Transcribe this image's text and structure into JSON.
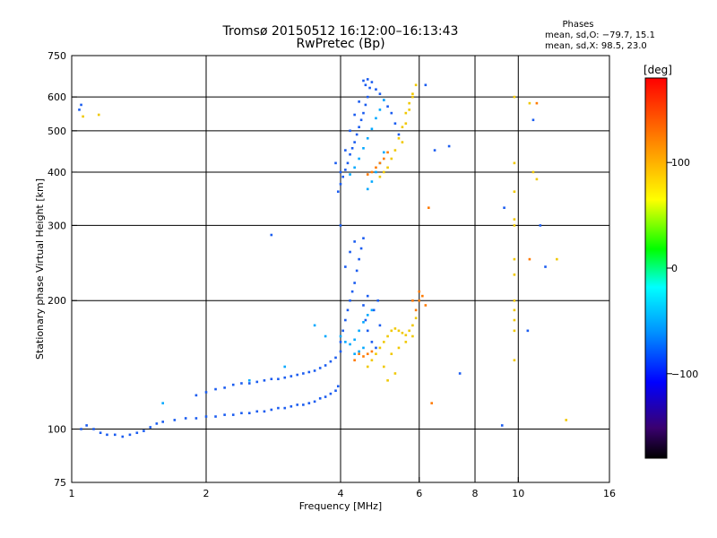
{
  "chart_data": {
    "type": "scatter",
    "title": "Tromsø 20150512 16:12:00–16:13:43",
    "subtitle": "RwPretec (Bp)",
    "xlabel": "Frequency [MHz]",
    "ylabel": "Stationary phase Virtual Height [km]",
    "x_scale": "log2",
    "y_scale": "log",
    "xlim": [
      1,
      16
    ],
    "ylim": [
      75,
      750
    ],
    "x_ticks": [
      {
        "value": 1,
        "label": "1"
      },
      {
        "value": 2,
        "label": "2"
      },
      {
        "value": 4,
        "label": "4"
      },
      {
        "value": 6,
        "label": "6"
      },
      {
        "value": 8,
        "label": "8"
      },
      {
        "value": 10,
        "label": "10"
      },
      {
        "value": 16,
        "label": "16"
      }
    ],
    "y_ticks": [
      {
        "value": 75,
        "label": "75"
      },
      {
        "value": 100,
        "label": "100"
      },
      {
        "value": 200,
        "label": "200"
      },
      {
        "value": 300,
        "label": "300"
      },
      {
        "value": 400,
        "label": "400"
      },
      {
        "value": 500,
        "label": "500"
      },
      {
        "value": 600,
        "label": "600"
      },
      {
        "value": 750,
        "label": "750"
      }
    ],
    "grid": true,
    "phases_header": "Phases",
    "phase_stats": [
      "mean, sd,O: −79.7, 15.1",
      "mean, sd,X: 98.5, 23.0"
    ],
    "colorbar": {
      "label": "[deg]",
      "range": [
        -180,
        180
      ],
      "ticks": [
        {
          "value": 100,
          "label": "100"
        },
        {
          "value": 0,
          "label": "0"
        },
        {
          "value": -100,
          "label": "−100"
        }
      ],
      "colors": [
        "#000000",
        "#3a0070",
        "#0000ff",
        "#0090ff",
        "#00ffff",
        "#00ff00",
        "#ffff00",
        "#ff8000",
        "#ff0000"
      ]
    },
    "series": [
      {
        "points": [
          [
            1.05,
            100
          ],
          [
            1.08,
            102
          ],
          [
            1.12,
            100
          ],
          [
            1.16,
            98
          ],
          [
            1.2,
            97
          ],
          [
            1.25,
            97
          ],
          [
            1.3,
            96
          ],
          [
            1.35,
            97
          ],
          [
            1.4,
            98
          ],
          [
            1.45,
            99
          ],
          [
            1.5,
            101
          ],
          [
            1.55,
            103
          ],
          [
            1.6,
            104
          ],
          [
            1.7,
            105
          ],
          [
            1.8,
            106
          ],
          [
            1.9,
            106
          ],
          [
            2.0,
            107
          ],
          [
            2.1,
            107
          ],
          [
            2.2,
            108
          ],
          [
            2.3,
            108
          ],
          [
            2.4,
            109
          ],
          [
            2.5,
            109
          ],
          [
            2.6,
            110
          ],
          [
            2.7,
            110
          ],
          [
            2.8,
            111
          ],
          [
            2.9,
            112
          ],
          [
            3.0,
            112
          ],
          [
            3.1,
            113
          ],
          [
            3.2,
            114
          ],
          [
            3.3,
            114
          ],
          [
            3.4,
            115
          ],
          [
            3.5,
            116
          ],
          [
            3.6,
            118
          ],
          [
            3.7,
            119
          ],
          [
            3.8,
            121
          ],
          [
            3.9,
            123
          ],
          [
            3.95,
            126
          ],
          [
            1.9,
            120
          ],
          [
            2.0,
            122
          ],
          [
            2.1,
            124
          ],
          [
            2.2,
            125
          ],
          [
            2.3,
            127
          ],
          [
            2.4,
            128
          ],
          [
            2.5,
            128
          ],
          [
            2.6,
            129
          ],
          [
            2.7,
            130
          ],
          [
            2.8,
            131
          ],
          [
            2.9,
            131
          ],
          [
            3.0,
            132
          ],
          [
            3.1,
            133
          ],
          [
            3.2,
            134
          ],
          [
            3.3,
            135
          ],
          [
            3.4,
            136
          ],
          [
            3.5,
            137
          ],
          [
            3.6,
            139
          ],
          [
            3.7,
            141
          ],
          [
            3.8,
            144
          ],
          [
            3.9,
            147
          ],
          [
            4.0,
            152
          ],
          [
            4.0,
            160
          ],
          [
            4.05,
            170
          ],
          [
            4.1,
            180
          ],
          [
            4.15,
            190
          ],
          [
            4.2,
            200
          ],
          [
            4.25,
            210
          ],
          [
            4.3,
            220
          ],
          [
            4.35,
            235
          ],
          [
            4.4,
            250
          ],
          [
            4.45,
            265
          ],
          [
            4.5,
            280
          ],
          [
            4.1,
            240
          ],
          [
            4.2,
            260
          ],
          [
            4.3,
            275
          ],
          [
            4.55,
            180
          ],
          [
            4.6,
            170
          ],
          [
            4.7,
            160
          ],
          [
            4.8,
            155
          ],
          [
            4.5,
            195
          ],
          [
            4.6,
            205
          ],
          [
            4.9,
            175
          ],
          [
            4.75,
            190
          ],
          [
            4.85,
            200
          ],
          [
            4.0,
            300
          ],
          [
            2.8,
            285
          ],
          [
            1.04,
            560
          ],
          [
            1.05,
            575
          ],
          [
            3.95,
            360
          ],
          [
            4.0,
            375
          ],
          [
            4.05,
            390
          ],
          [
            4.1,
            405
          ],
          [
            4.15,
            420
          ],
          [
            4.2,
            440
          ],
          [
            4.25,
            455
          ],
          [
            4.3,
            470
          ],
          [
            4.35,
            490
          ],
          [
            4.4,
            510
          ],
          [
            4.45,
            530
          ],
          [
            4.5,
            550
          ],
          [
            4.55,
            575
          ],
          [
            4.6,
            600
          ],
          [
            4.65,
            630
          ],
          [
            4.5,
            655
          ],
          [
            4.55,
            640
          ],
          [
            4.6,
            660
          ],
          [
            4.7,
            650
          ],
          [
            4.0,
            400
          ],
          [
            4.1,
            450
          ],
          [
            4.2,
            500
          ],
          [
            4.3,
            545
          ],
          [
            4.4,
            585
          ],
          [
            4.8,
            625
          ],
          [
            4.9,
            610
          ],
          [
            5.0,
            590
          ],
          [
            5.1,
            570
          ],
          [
            5.2,
            550
          ],
          [
            5.3,
            520
          ],
          [
            5.4,
            490
          ],
          [
            3.9,
            420
          ],
          [
            9.3,
            330
          ],
          [
            10.8,
            530
          ],
          [
            11.2,
            300
          ],
          [
            11.5,
            240
          ],
          [
            7.0,
            460
          ],
          [
            6.5,
            450
          ],
          [
            6.2,
            640
          ],
          [
            10.5,
            170
          ],
          [
            7.4,
            135
          ],
          [
            9.2,
            102
          ]
        ]
      },
      {
        "points": [
          [
            4.9,
            390
          ],
          [
            5.0,
            400
          ],
          [
            5.1,
            410
          ],
          [
            5.2,
            430
          ],
          [
            5.3,
            450
          ],
          [
            5.4,
            480
          ],
          [
            5.5,
            510
          ],
          [
            5.6,
            550
          ],
          [
            5.7,
            580
          ],
          [
            5.8,
            610
          ],
          [
            5.9,
            640
          ],
          [
            5.6,
            520
          ],
          [
            5.7,
            560
          ],
          [
            5.8,
            600
          ],
          [
            5.5,
            470
          ],
          [
            4.6,
            140
          ],
          [
            4.7,
            145
          ],
          [
            4.8,
            150
          ],
          [
            4.9,
            155
          ],
          [
            5.0,
            160
          ],
          [
            5.1,
            165
          ],
          [
            5.2,
            170
          ],
          [
            5.3,
            172
          ],
          [
            5.4,
            170
          ],
          [
            5.5,
            168
          ],
          [
            5.6,
            166
          ],
          [
            5.7,
            170
          ],
          [
            5.8,
            175
          ],
          [
            5.9,
            182
          ],
          [
            5.0,
            140
          ],
          [
            5.2,
            150
          ],
          [
            5.4,
            155
          ],
          [
            5.6,
            160
          ],
          [
            5.8,
            165
          ],
          [
            5.1,
            130
          ],
          [
            5.3,
            135
          ],
          [
            9.8,
            600
          ],
          [
            9.8,
            420
          ],
          [
            9.8,
            360
          ],
          [
            9.8,
            300
          ],
          [
            9.8,
            250
          ],
          [
            9.8,
            200
          ],
          [
            9.8,
            180
          ],
          [
            9.8,
            170
          ],
          [
            9.8,
            145
          ],
          [
            9.8,
            310
          ],
          [
            9.8,
            230
          ],
          [
            9.8,
            190
          ],
          [
            10.6,
            580
          ],
          [
            10.8,
            400
          ],
          [
            11.0,
            385
          ],
          [
            12.8,
            105
          ],
          [
            12.2,
            250
          ],
          [
            1.15,
            545
          ],
          [
            1.06,
            540
          ]
        ]
      },
      {
        "points": [
          [
            4.2,
            395
          ],
          [
            4.3,
            410
          ],
          [
            4.4,
            430
          ],
          [
            4.5,
            455
          ],
          [
            4.6,
            480
          ],
          [
            4.7,
            505
          ],
          [
            4.8,
            535
          ],
          [
            4.9,
            560
          ],
          [
            5.0,
            590
          ],
          [
            4.6,
            365
          ],
          [
            4.7,
            380
          ],
          [
            4.8,
            400
          ],
          [
            4.9,
            420
          ],
          [
            5.0,
            445
          ],
          [
            4.0,
            165
          ],
          [
            4.1,
            160
          ],
          [
            4.2,
            158
          ],
          [
            4.3,
            162
          ],
          [
            4.4,
            170
          ],
          [
            4.5,
            178
          ],
          [
            4.6,
            185
          ],
          [
            4.7,
            190
          ],
          [
            4.3,
            150
          ],
          [
            4.4,
            152
          ],
          [
            4.5,
            155
          ],
          [
            3.5,
            175
          ],
          [
            3.7,
            165
          ],
          [
            3.0,
            140
          ],
          [
            2.5,
            130
          ],
          [
            1.6,
            115
          ]
        ]
      },
      {
        "points": [
          [
            4.6,
            395
          ],
          [
            4.7,
            400
          ],
          [
            4.8,
            410
          ],
          [
            4.9,
            420
          ],
          [
            5.0,
            430
          ],
          [
            5.1,
            445
          ],
          [
            4.4,
            150
          ],
          [
            4.5,
            148
          ],
          [
            4.6,
            150
          ],
          [
            4.7,
            152
          ],
          [
            6.0,
            200
          ],
          [
            6.1,
            205
          ],
          [
            6.2,
            195
          ],
          [
            10.6,
            250
          ],
          [
            6.3,
            330
          ],
          [
            11.0,
            580
          ],
          [
            6.4,
            115
          ],
          [
            5.8,
            200
          ],
          [
            6.0,
            210
          ],
          [
            5.9,
            190
          ],
          [
            4.3,
            145
          ]
        ]
      }
    ]
  }
}
